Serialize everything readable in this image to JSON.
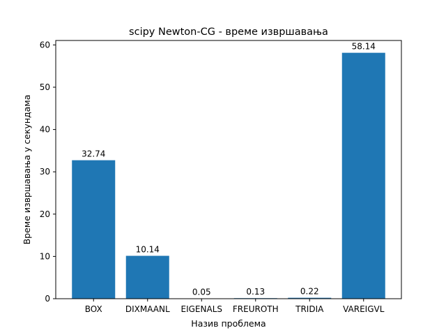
{
  "chart_data": {
    "type": "bar",
    "title": "scipy Newton-CG - време извршавања",
    "xlabel": "Назив проблема",
    "ylabel": "Време извршавања у секундама",
    "categories": [
      "BOX",
      "DIXMAANL",
      "EIGENALS",
      "FREUROTH",
      "TRIDIA",
      "VAREIGVL"
    ],
    "values": [
      32.74,
      10.14,
      0.05,
      0.13,
      0.22,
      58.14
    ],
    "value_labels": [
      "32.74",
      "10.14",
      "0.05",
      "0.13",
      "0.22",
      "58.14"
    ],
    "ylim": [
      0,
      61.05
    ],
    "yticks": [
      0,
      10,
      20,
      30,
      40,
      50,
      60
    ],
    "grid": false,
    "legend": "none",
    "bar_color": "#1f77b4"
  }
}
